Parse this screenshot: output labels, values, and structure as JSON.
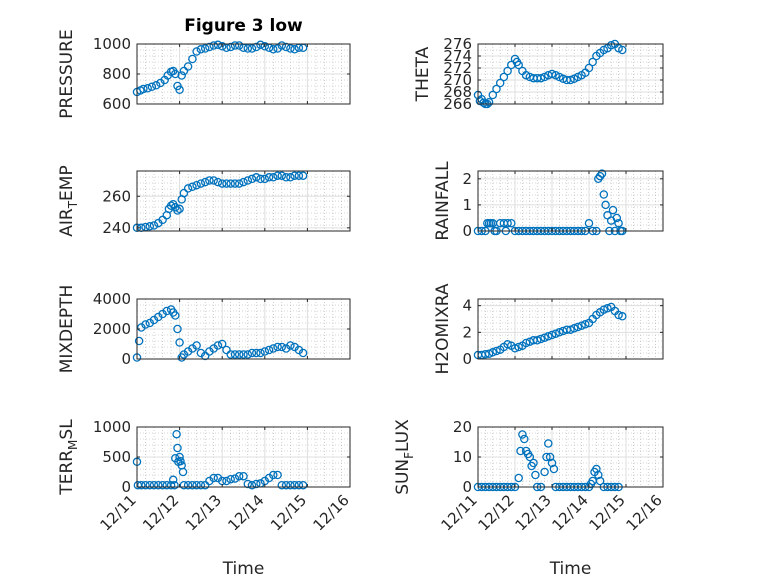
{
  "title": "Figure 3 low",
  "colors": {
    "marker": "#0072bd",
    "axes": "#262626",
    "grid": "#dfdfdf",
    "minor_grid": "#b0b0b0",
    "background": "#ffffff"
  },
  "chart_data": [
    {
      "type": "scatter",
      "title": "Figure 3 low",
      "ylabel": "PRESSURE",
      "xlabel": "",
      "xlim": [
        0,
        5
      ],
      "ylim": [
        600,
        1000
      ],
      "yticks": [
        600,
        800,
        1000
      ],
      "xticks": [
        0,
        1,
        2,
        3,
        4,
        5
      ],
      "xticklabels": [
        "12/11",
        "12/12",
        "12/13",
        "12/14",
        "12/15",
        "12/16"
      ],
      "show_xticklabels": false,
      "grid": "on (major and minor)",
      "x": [
        0.0,
        0.08,
        0.15,
        0.25,
        0.35,
        0.45,
        0.55,
        0.65,
        0.72,
        0.8,
        0.85,
        0.9,
        0.95,
        1.0,
        1.05,
        1.1,
        1.2,
        1.3,
        1.4,
        1.5,
        1.6,
        1.7,
        1.8,
        1.9,
        2.0,
        2.1,
        2.2,
        2.3,
        2.4,
        2.5,
        2.6,
        2.7,
        2.8,
        2.9,
        3.0,
        3.1,
        3.2,
        3.3,
        3.4,
        3.5,
        3.6,
        3.7,
        3.8,
        3.9
      ],
      "y": [
        680,
        690,
        700,
        705,
        715,
        725,
        740,
        760,
        790,
        815,
        820,
        800,
        720,
        695,
        790,
        820,
        850,
        900,
        950,
        965,
        970,
        980,
        990,
        995,
        985,
        975,
        980,
        990,
        990,
        975,
        970,
        970,
        980,
        995,
        985,
        975,
        965,
        970,
        990,
        980,
        970,
        965,
        975,
        975
      ]
    },
    {
      "type": "scatter",
      "ylabel": "THETA",
      "xlabel": "",
      "xlim": [
        0,
        5
      ],
      "ylim": [
        266,
        276
      ],
      "yticks": [
        266,
        268,
        270,
        272,
        274,
        276
      ],
      "xticks": [
        0,
        1,
        2,
        3,
        4,
        5
      ],
      "xticklabels": [
        "12/11",
        "12/12",
        "12/13",
        "12/14",
        "12/15",
        "12/16"
      ],
      "show_xticklabels": false,
      "grid": "on (major and minor)",
      "x": [
        0.0,
        0.05,
        0.1,
        0.15,
        0.2,
        0.25,
        0.3,
        0.4,
        0.5,
        0.6,
        0.7,
        0.8,
        0.9,
        1.0,
        1.05,
        1.1,
        1.2,
        1.3,
        1.4,
        1.5,
        1.6,
        1.7,
        1.8,
        1.9,
        2.0,
        2.1,
        2.2,
        2.3,
        2.4,
        2.5,
        2.6,
        2.7,
        2.8,
        2.9,
        3.0,
        3.1,
        3.2,
        3.3,
        3.4,
        3.5,
        3.6,
        3.7,
        3.8,
        3.9
      ],
      "y": [
        267.5,
        266.5,
        266.8,
        266.2,
        266.0,
        266.0,
        266.3,
        267.5,
        268.5,
        269.5,
        270.5,
        271.5,
        272.5,
        273.5,
        273.0,
        272.5,
        271.5,
        270.8,
        270.5,
        270.3,
        270.3,
        270.3,
        270.5,
        270.8,
        271.0,
        270.8,
        270.5,
        270.2,
        270.0,
        270.0,
        270.2,
        270.5,
        270.8,
        271.2,
        272.0,
        273.0,
        274.0,
        274.5,
        275.0,
        275.3,
        275.8,
        276.0,
        275.3,
        275.0
      ]
    },
    {
      "type": "scatter",
      "ylabel": "AIR_TEMP",
      "xlabel": "",
      "xlim": [
        0,
        5
      ],
      "ylim": [
        238,
        276
      ],
      "yticks": [
        240,
        260
      ],
      "xticks": [
        0,
        1,
        2,
        3,
        4,
        5
      ],
      "xticklabels": [
        "12/11",
        "12/12",
        "12/13",
        "12/14",
        "12/15",
        "12/16"
      ],
      "show_xticklabels": false,
      "grid": "on (major and minor)",
      "x": [
        0.0,
        0.1,
        0.2,
        0.3,
        0.4,
        0.5,
        0.6,
        0.7,
        0.75,
        0.8,
        0.85,
        0.9,
        0.95,
        1.0,
        1.05,
        1.1,
        1.2,
        1.3,
        1.4,
        1.5,
        1.6,
        1.7,
        1.8,
        1.9,
        2.0,
        2.1,
        2.2,
        2.3,
        2.4,
        2.5,
        2.6,
        2.7,
        2.8,
        2.9,
        3.0,
        3.1,
        3.2,
        3.3,
        3.4,
        3.5,
        3.6,
        3.7,
        3.8,
        3.9
      ],
      "y": [
        240,
        240,
        240.5,
        241,
        241.5,
        243,
        245,
        248,
        252,
        254,
        255,
        253,
        251,
        252,
        258,
        262,
        265,
        266,
        267,
        268,
        269,
        270,
        270,
        269,
        268,
        268,
        268,
        268,
        268,
        269,
        270,
        271,
        272,
        271,
        271,
        272,
        272,
        273,
        273,
        272,
        272,
        273,
        273,
        273
      ]
    },
    {
      "type": "scatter",
      "ylabel": "RAINFALL",
      "xlabel": "",
      "xlim": [
        0,
        5
      ],
      "ylim": [
        0,
        2.3
      ],
      "yticks": [
        0,
        1,
        2
      ],
      "xticks": [
        0,
        1,
        2,
        3,
        4,
        5
      ],
      "xticklabels": [
        "12/11",
        "12/12",
        "12/13",
        "12/14",
        "12/15",
        "12/16"
      ],
      "show_xticklabels": false,
      "grid": "on (major and minor)",
      "x": [
        0.0,
        0.1,
        0.2,
        0.25,
        0.3,
        0.35,
        0.4,
        0.45,
        0.5,
        0.6,
        0.7,
        0.75,
        0.8,
        0.9,
        1.0,
        1.1,
        1.2,
        1.3,
        1.4,
        1.5,
        1.6,
        1.7,
        1.8,
        1.9,
        2.0,
        2.1,
        2.2,
        2.3,
        2.4,
        2.5,
        2.6,
        2.7,
        2.8,
        2.9,
        3.0,
        3.1,
        3.2,
        3.25,
        3.3,
        3.35,
        3.4,
        3.45,
        3.5,
        3.55,
        3.6,
        3.65,
        3.7,
        3.75,
        3.8,
        3.85,
        3.9
      ],
      "y": [
        0,
        0,
        0,
        0.3,
        0.3,
        0.3,
        0.3,
        0,
        0,
        0.3,
        0.3,
        0,
        0.3,
        0.3,
        0,
        0,
        0,
        0,
        0,
        0,
        0,
        0,
        0,
        0,
        0,
        0,
        0,
        0,
        0,
        0,
        0,
        0,
        0,
        0,
        0.3,
        0,
        0,
        2.0,
        2.1,
        2.2,
        1.4,
        1.0,
        0.6,
        0,
        0.4,
        0.8,
        0,
        0.5,
        0.3,
        0,
        0
      ]
    },
    {
      "type": "scatter",
      "ylabel": "MIXDEPTH",
      "xlabel": "",
      "xlim": [
        0,
        5
      ],
      "ylim": [
        0,
        4000
      ],
      "yticks": [
        0,
        2000,
        4000
      ],
      "xticks": [
        0,
        1,
        2,
        3,
        4,
        5
      ],
      "xticklabels": [
        "12/11",
        "12/12",
        "12/13",
        "12/14",
        "12/15",
        "12/16"
      ],
      "show_xticklabels": false,
      "grid": "on (major and minor)",
      "x": [
        0.0,
        0.05,
        0.1,
        0.2,
        0.3,
        0.4,
        0.5,
        0.6,
        0.7,
        0.8,
        0.85,
        0.9,
        0.95,
        1.0,
        1.05,
        1.1,
        1.2,
        1.3,
        1.4,
        1.5,
        1.6,
        1.7,
        1.8,
        1.9,
        2.0,
        2.1,
        2.2,
        2.3,
        2.4,
        2.5,
        2.6,
        2.7,
        2.8,
        2.9,
        3.0,
        3.1,
        3.2,
        3.3,
        3.4,
        3.5,
        3.6,
        3.7,
        3.8,
        3.9
      ],
      "y": [
        100,
        1200,
        2100,
        2300,
        2400,
        2600,
        2800,
        3000,
        3200,
        3300,
        3100,
        2900,
        2000,
        1100,
        100,
        300,
        500,
        700,
        900,
        400,
        200,
        500,
        700,
        900,
        1000,
        600,
        300,
        300,
        300,
        300,
        300,
        400,
        400,
        400,
        500,
        600,
        700,
        800,
        800,
        700,
        900,
        800,
        600,
        400
      ]
    },
    {
      "type": "scatter",
      "ylabel": "H2OMIXRA",
      "xlabel": "",
      "xlim": [
        0,
        5
      ],
      "ylim": [
        0,
        4.5
      ],
      "yticks": [
        0,
        2,
        4
      ],
      "xticks": [
        0,
        1,
        2,
        3,
        4,
        5
      ],
      "xticklabels": [
        "12/11",
        "12/12",
        "12/13",
        "12/14",
        "12/15",
        "12/16"
      ],
      "show_xticklabels": false,
      "grid": "on (major and minor)",
      "x": [
        0.0,
        0.1,
        0.2,
        0.3,
        0.4,
        0.5,
        0.6,
        0.7,
        0.8,
        0.9,
        1.0,
        1.1,
        1.2,
        1.3,
        1.4,
        1.5,
        1.6,
        1.7,
        1.8,
        1.9,
        2.0,
        2.1,
        2.2,
        2.3,
        2.4,
        2.5,
        2.6,
        2.7,
        2.8,
        2.9,
        3.0,
        3.1,
        3.2,
        3.3,
        3.4,
        3.5,
        3.6,
        3.7,
        3.8,
        3.9
      ],
      "y": [
        0.3,
        0.3,
        0.35,
        0.4,
        0.5,
        0.6,
        0.7,
        0.9,
        1.1,
        1.0,
        0.8,
        0.9,
        1.0,
        1.2,
        1.3,
        1.4,
        1.4,
        1.5,
        1.6,
        1.7,
        1.8,
        1.9,
        2.0,
        2.1,
        2.2,
        2.2,
        2.3,
        2.4,
        2.5,
        2.6,
        2.7,
        3.0,
        3.3,
        3.5,
        3.7,
        3.8,
        3.9,
        3.6,
        3.3,
        3.2
      ]
    },
    {
      "type": "scatter",
      "ylabel": "TERR_MSL",
      "xlabel": "Time",
      "xlim": [
        0,
        5
      ],
      "ylim": [
        0,
        1000
      ],
      "yticks": [
        0,
        500,
        1000
      ],
      "xticks": [
        0,
        1,
        2,
        3,
        4,
        5
      ],
      "xticklabels": [
        "12/11",
        "12/12",
        "12/13",
        "12/14",
        "12/15",
        "12/16"
      ],
      "show_xticklabels": true,
      "grid": "on (major and minor)",
      "x": [
        0.0,
        0.02,
        0.1,
        0.2,
        0.3,
        0.4,
        0.5,
        0.6,
        0.7,
        0.8,
        0.85,
        0.88,
        0.9,
        0.93,
        0.95,
        0.97,
        1.0,
        1.02,
        1.05,
        1.08,
        1.1,
        1.2,
        1.3,
        1.4,
        1.5,
        1.6,
        1.7,
        1.8,
        1.9,
        2.0,
        2.1,
        2.2,
        2.3,
        2.4,
        2.5,
        2.6,
        2.7,
        2.8,
        2.9,
        3.0,
        3.1,
        3.2,
        3.3,
        3.4,
        3.5,
        3.6,
        3.7,
        3.8,
        3.9
      ],
      "y": [
        420,
        30,
        30,
        30,
        30,
        30,
        30,
        30,
        30,
        30,
        120,
        30,
        480,
        880,
        650,
        420,
        500,
        430,
        360,
        250,
        30,
        30,
        30,
        30,
        30,
        30,
        100,
        150,
        150,
        100,
        100,
        130,
        140,
        180,
        180,
        50,
        30,
        50,
        60,
        100,
        150,
        200,
        200,
        30,
        30,
        30,
        30,
        30,
        30
      ]
    },
    {
      "type": "scatter",
      "ylabel": "SUN_FLUX",
      "xlabel": "Time",
      "xlim": [
        0,
        5
      ],
      "ylim": [
        0,
        20
      ],
      "yticks": [
        0,
        10,
        20
      ],
      "xticks": [
        0,
        1,
        2,
        3,
        4,
        5
      ],
      "xticklabels": [
        "12/11",
        "12/12",
        "12/13",
        "12/14",
        "12/15",
        "12/16"
      ],
      "show_xticklabels": true,
      "grid": "on (major and minor)",
      "x": [
        0.0,
        0.1,
        0.2,
        0.3,
        0.4,
        0.5,
        0.6,
        0.7,
        0.8,
        0.9,
        1.0,
        1.1,
        1.15,
        1.2,
        1.25,
        1.3,
        1.35,
        1.4,
        1.45,
        1.5,
        1.55,
        1.6,
        1.7,
        1.8,
        1.85,
        1.9,
        1.95,
        2.0,
        2.05,
        2.1,
        2.2,
        2.3,
        2.4,
        2.5,
        2.6,
        2.7,
        2.8,
        2.9,
        3.0,
        3.05,
        3.1,
        3.15,
        3.2,
        3.25,
        3.3,
        3.4,
        3.5,
        3.6,
        3.7,
        3.8
      ],
      "y": [
        0,
        0,
        0,
        0,
        0,
        0,
        0,
        0,
        0,
        0,
        0,
        3,
        12,
        17.5,
        16,
        12,
        11,
        10,
        7,
        8,
        4,
        0,
        0,
        5,
        10,
        14.5,
        10,
        8,
        6,
        0,
        0,
        0,
        0,
        0,
        0,
        0,
        0,
        0,
        0,
        1,
        2,
        5,
        6,
        4,
        2,
        0,
        0,
        0,
        0,
        0
      ]
    }
  ]
}
